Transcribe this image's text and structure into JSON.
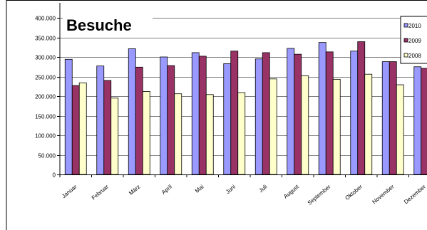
{
  "chart_data": {
    "type": "bar",
    "title": "Besuche",
    "categories": [
      "Januar",
      "Februar",
      "März",
      "April",
      "Mai",
      "Juni",
      "Juli",
      "August",
      "September",
      "Oktober",
      "November",
      "Dezember"
    ],
    "series": [
      {
        "name": "2010",
        "color": "#9999ff",
        "values": [
          294000,
          277000,
          321000,
          300000,
          311000,
          283000,
          295000,
          322000,
          337000,
          315000,
          288000,
          275000
        ]
      },
      {
        "name": "2009",
        "color": "#993366",
        "values": [
          227000,
          240000,
          274000,
          278000,
          302000,
          315000,
          311000,
          307000,
          313000,
          339000,
          288000,
          271000
        ]
      },
      {
        "name": "2008",
        "color": "#ffffcc",
        "values": [
          234000,
          195000,
          212000,
          206000,
          204000,
          209000,
          244000,
          252000,
          243000,
          256000,
          229000,
          null
        ]
      }
    ],
    "ylim": [
      0,
      400000
    ],
    "yticks": [
      "0",
      "50.000",
      "100.000",
      "150.000",
      "200.000",
      "250.000",
      "300.000",
      "350.000",
      "400.000"
    ],
    "legend": "right",
    "grid": true
  }
}
